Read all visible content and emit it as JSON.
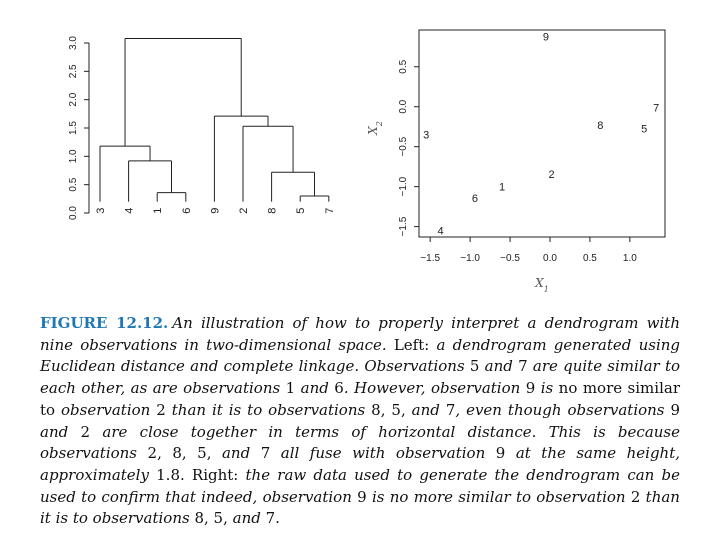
{
  "chart_data": [
    {
      "type": "dendrogram",
      "yticks": [
        "0.0",
        "0.5",
        "1.0",
        "1.5",
        "2.0",
        "2.5",
        "3.0"
      ],
      "ylim": [
        0,
        3.1
      ],
      "leaf_order": [
        "3",
        "4",
        "1",
        "6",
        "9",
        "2",
        "8",
        "5",
        "7"
      ],
      "merges": [
        {
          "members": [
            "5",
            "7"
          ],
          "height": 0.3
        },
        {
          "members": [
            "1",
            "6"
          ],
          "height": 0.36
        },
        {
          "members": [
            "8",
            "5",
            "7"
          ],
          "height": 0.72
        },
        {
          "members": [
            "4",
            "1",
            "6"
          ],
          "height": 0.92
        },
        {
          "members": [
            "3",
            "4",
            "1",
            "6"
          ],
          "height": 1.18
        },
        {
          "members": [
            "2",
            "8",
            "5",
            "7"
          ],
          "height": 1.53
        },
        {
          "members": [
            "9",
            "2",
            "8",
            "5",
            "7"
          ],
          "height": 1.71
        },
        {
          "members": [
            "3",
            "4",
            "1",
            "6",
            "9",
            "2",
            "8",
            "5",
            "7"
          ],
          "height": 3.08
        }
      ]
    },
    {
      "type": "scatter",
      "xlabel_main": "X",
      "xlabel_sub": "1",
      "ylabel_main": "X",
      "ylabel_sub": "2",
      "xticks": [
        "−1.5",
        "−1.0",
        "−0.5",
        "0.0",
        "0.5",
        "1.0"
      ],
      "yticks": [
        "−1.5",
        "−1.0",
        "−0.5",
        "0.0",
        "0.5"
      ],
      "xlim": [
        -1.64,
        1.44
      ],
      "ylim": [
        -1.63,
        0.96
      ],
      "points": [
        {
          "label": "1",
          "x": -0.6,
          "y": -1.0
        },
        {
          "label": "2",
          "x": 0.02,
          "y": -0.84
        },
        {
          "label": "3",
          "x": -1.55,
          "y": -0.35
        },
        {
          "label": "4",
          "x": -1.37,
          "y": -1.55
        },
        {
          "label": "5",
          "x": 1.18,
          "y": -0.27
        },
        {
          "label": "6",
          "x": -0.94,
          "y": -1.14
        },
        {
          "label": "7",
          "x": 1.33,
          "y": -0.01
        },
        {
          "label": "8",
          "x": 0.63,
          "y": -0.23
        },
        {
          "label": "9",
          "x": -0.05,
          "y": 0.88
        }
      ]
    }
  ],
  "caption": {
    "label": "FIGURE 12.12.",
    "segments": [
      {
        "t": "An illustration of how to properly interpret a dendrogram with nine observations in two-dimensional space.",
        "i": true
      },
      {
        "t": " Left: ",
        "i": false
      },
      {
        "t": "a dendrogram generated using Euclidean distance and complete linkage. Observations",
        "i": true
      },
      {
        "t": " 5 ",
        "i": false
      },
      {
        "t": "and",
        "i": true
      },
      {
        "t": " 7 ",
        "i": false
      },
      {
        "t": "are quite similar to each other, as are observations",
        "i": true
      },
      {
        "t": " 1 ",
        "i": false
      },
      {
        "t": "and",
        "i": true
      },
      {
        "t": " 6",
        "i": false
      },
      {
        "t": ". However, observation",
        "i": true
      },
      {
        "t": " 9 ",
        "i": false
      },
      {
        "t": "is",
        "i": true
      },
      {
        "t": " no more similar to ",
        "i": false
      },
      {
        "t": "observation",
        "i": true
      },
      {
        "t": " 2 ",
        "i": false
      },
      {
        "t": "than it is to observations",
        "i": true
      },
      {
        "t": " 8, 5, ",
        "i": false
      },
      {
        "t": "and",
        "i": true
      },
      {
        "t": " 7",
        "i": false
      },
      {
        "t": ", even though observations",
        "i": true
      },
      {
        "t": " 9 ",
        "i": false
      },
      {
        "t": "and",
        "i": true
      },
      {
        "t": " 2 ",
        "i": false
      },
      {
        "t": "are close together in terms of horizontal distance. This is because observations",
        "i": true
      },
      {
        "t": " 2, 8, 5, ",
        "i": false
      },
      {
        "t": "and",
        "i": true
      },
      {
        "t": " 7 ",
        "i": false
      },
      {
        "t": "all fuse with observation",
        "i": true
      },
      {
        "t": " 9 ",
        "i": false
      },
      {
        "t": "at the same height, approximately",
        "i": true
      },
      {
        "t": " 1.8. Right: ",
        "i": false
      },
      {
        "t": "the raw data used to generate the dendrogram can be used to confirm that indeed, observation",
        "i": true
      },
      {
        "t": " 9 ",
        "i": false
      },
      {
        "t": "is no more similar to observation",
        "i": true
      },
      {
        "t": " 2 ",
        "i": false
      },
      {
        "t": "than it is to observations",
        "i": true
      },
      {
        "t": " 8, 5, ",
        "i": false
      },
      {
        "t": "and",
        "i": true
      },
      {
        "t": " 7",
        "i": false
      },
      {
        "t": ".",
        "i": true
      }
    ]
  }
}
